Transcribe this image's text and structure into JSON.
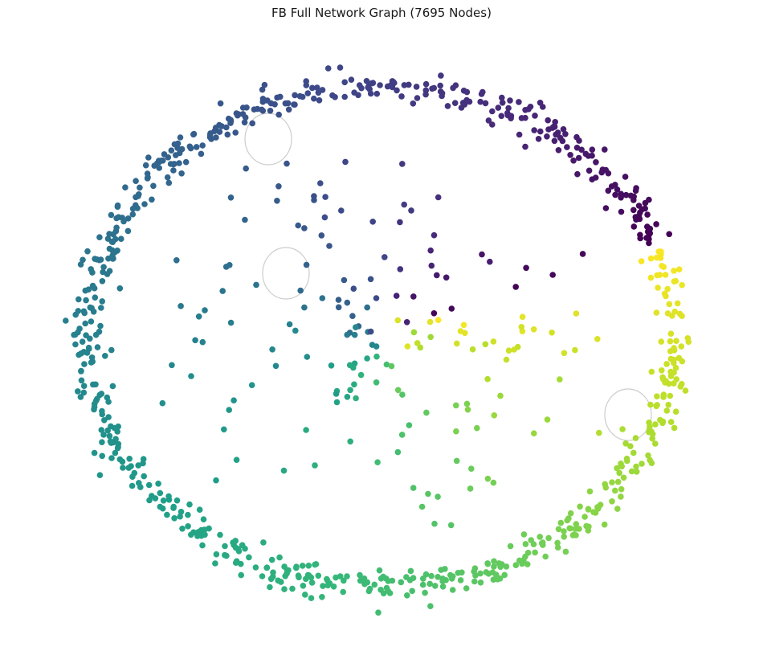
{
  "chart_data": {
    "type": "scatter",
    "title": "FB Full Network Graph (7695 Nodes)",
    "xlabel": "",
    "ylabel": "",
    "axes_visible": false,
    "grid": false,
    "colormap": "viridis",
    "node_color_stops": [
      "#440154",
      "#482878",
      "#3e4989",
      "#31688e",
      "#26828e",
      "#1f9e89",
      "#35b779",
      "#6ece58",
      "#b5de2b",
      "#fde725"
    ],
    "edge_color": "#cccccc",
    "node_radius_hint": "small",
    "layout_note": "nodes arranged mostly on an outer ring, colored by angular position",
    "ring_shape": {
      "center": [
        0,
        0
      ],
      "rx": 1,
      "ry": 1
    },
    "interior_fraction": 0.18,
    "loops_present": true
  }
}
